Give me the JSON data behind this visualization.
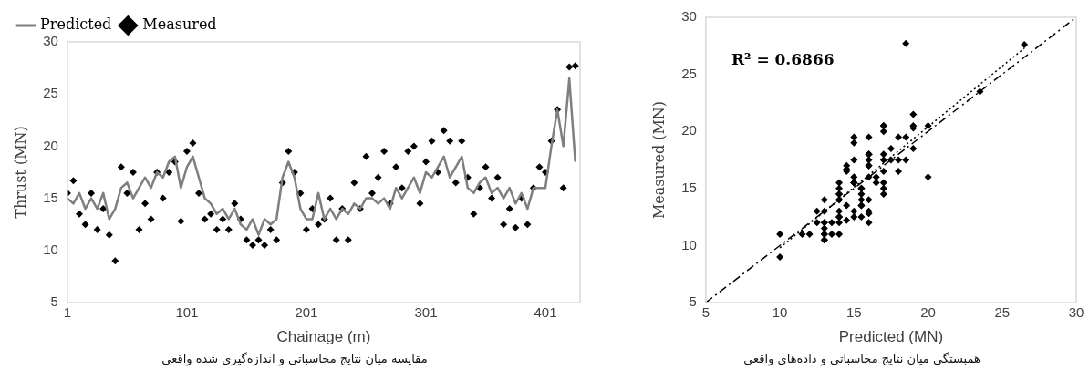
{
  "chart_data": [
    {
      "type": "line",
      "title": "مقایسه میان نتایج محاسباتی و اندازه‌گیری شده واقعی",
      "xlabel": "Chainage (m)",
      "ylabel": "Thrust (MN)",
      "xlim": [
        1,
        430
      ],
      "xticks": [
        1,
        101,
        201,
        301,
        401
      ],
      "ylim": [
        5,
        30
      ],
      "yticks": [
        5,
        10,
        15,
        20,
        25,
        30
      ],
      "grid": false,
      "legend": "top left",
      "x": [
        1,
        6,
        11,
        16,
        21,
        26,
        31,
        36,
        41,
        46,
        51,
        56,
        61,
        66,
        71,
        76,
        81,
        86,
        91,
        96,
        101,
        106,
        111,
        116,
        121,
        126,
        131,
        136,
        141,
        146,
        151,
        156,
        161,
        166,
        171,
        176,
        181,
        186,
        191,
        196,
        201,
        206,
        211,
        216,
        221,
        226,
        231,
        236,
        241,
        246,
        251,
        256,
        261,
        266,
        271,
        276,
        281,
        286,
        291,
        296,
        301,
        306,
        311,
        316,
        321,
        326,
        331,
        336,
        341,
        346,
        351,
        356,
        361,
        366,
        371,
        376,
        381,
        386,
        391,
        396,
        401,
        406,
        411,
        416,
        421,
        426
      ],
      "series": [
        {
          "name": "Predicted",
          "color": "#7f7f7f",
          "marker": "none",
          "values": [
            15,
            14.5,
            15.5,
            14,
            15,
            14,
            15.5,
            13,
            14,
            16,
            16.5,
            15,
            16,
            17,
            16,
            17.5,
            17,
            18.5,
            19,
            16,
            18,
            19,
            17,
            15,
            14.5,
            13.5,
            14,
            13,
            14,
            12.5,
            12,
            13,
            11.5,
            13,
            12.5,
            13,
            17,
            18.5,
            17,
            14,
            13,
            13,
            15.5,
            13,
            14,
            13,
            14,
            13.5,
            14.5,
            14,
            15,
            15,
            14.5,
            15,
            14,
            16,
            15,
            16,
            17,
            15.5,
            17.5,
            17,
            18,
            19,
            17,
            18,
            19,
            16,
            15.5,
            16.5,
            17,
            15.5,
            16,
            15,
            16,
            14.5,
            15.5,
            14,
            16,
            16,
            16,
            20,
            23.5,
            20,
            26.5,
            18.5
          ]
        },
        {
          "name": "Measured",
          "type": "scatter",
          "color": "#000000",
          "marker": "diamond",
          "values": [
            15.5,
            16.7,
            13.5,
            12.5,
            15.5,
            12,
            14,
            11.5,
            9,
            18,
            15.5,
            17.5,
            12,
            14.5,
            13,
            17.5,
            15,
            17.5,
            18.5,
            12.8,
            19.5,
            20.3,
            15.5,
            13,
            13.5,
            12,
            13,
            12,
            14.5,
            13,
            11,
            10.5,
            11,
            10.5,
            12,
            11,
            16.5,
            19.5,
            17.5,
            15.5,
            12,
            14,
            12.5,
            13,
            15,
            11,
            14,
            11,
            16.5,
            14,
            19,
            15.5,
            17,
            19.5,
            14.5,
            18,
            16,
            19.5,
            20,
            14.5,
            18.5,
            20.5,
            17.5,
            21.5,
            20.5,
            16.5,
            20.5,
            17,
            13.5,
            16,
            18,
            15,
            17,
            12.5,
            14,
            12.2,
            15,
            12.5,
            16,
            18,
            17.5,
            20.5,
            23.5,
            16,
            27.6,
            27.7
          ]
        }
      ]
    },
    {
      "type": "scatter",
      "title": "همبستگی میان نتایج محاسباتی و داده‌های واقعی",
      "xlabel": "Predicted (MN)",
      "ylabel": "Measured (MN)",
      "xlim": [
        5,
        30
      ],
      "xticks": [
        5,
        10,
        15,
        20,
        25,
        30
      ],
      "ylim": [
        5,
        30
      ],
      "yticks": [
        5,
        10,
        15,
        20,
        25,
        30
      ],
      "grid": false,
      "legend": false,
      "annotations": [
        "R² = 0.6866"
      ],
      "series": [
        {
          "color": "#000000",
          "marker": "diamond",
          "x": [
            15,
            14.5,
            15.5,
            14,
            15,
            14,
            15.5,
            13,
            14,
            16,
            16.5,
            15,
            16,
            17,
            16,
            17.5,
            17,
            18.5,
            19,
            16,
            18,
            19,
            17,
            15,
            14.5,
            13.5,
            14,
            13,
            14,
            12.5,
            12,
            13,
            11.5,
            13,
            12.5,
            13,
            17,
            18.5,
            17,
            14,
            13,
            13,
            15.5,
            13,
            14,
            13,
            14,
            13.5,
            14.5,
            14,
            15,
            15,
            14.5,
            15,
            14,
            16,
            15,
            16,
            17,
            15.5,
            17.5,
            17,
            18,
            19,
            17,
            18,
            19,
            16,
            15.5,
            16.5,
            17,
            15.5,
            16,
            15,
            16,
            14.5,
            15.5,
            14,
            16,
            16,
            16,
            20,
            23.5,
            20,
            26.5,
            18.5,
            10,
            10
          ],
          "values": [
            15.5,
            16.7,
            13.5,
            12.5,
            15.5,
            12,
            14,
            11.5,
            11,
            18,
            15.5,
            17.5,
            12,
            14.5,
            13,
            17.5,
            15,
            17.5,
            18.5,
            12.8,
            19.5,
            20.3,
            15.5,
            13,
            13.5,
            12,
            13,
            12,
            14.5,
            13,
            11,
            10.5,
            11,
            10.5,
            12,
            11,
            16.5,
            19.5,
            17.5,
            15.5,
            12,
            14,
            12.5,
            13,
            15,
            11,
            14,
            11,
            16.5,
            14,
            19,
            15.5,
            17,
            19.5,
            14.5,
            18,
            16,
            19.5,
            20,
            14.5,
            18.5,
            20.5,
            17.5,
            21.5,
            20.5,
            16.5,
            20.5,
            17,
            13.5,
            16,
            18,
            15,
            17,
            12.5,
            14,
            12.2,
            15,
            12.5,
            16,
            18,
            17.5,
            20.5,
            23.5,
            16,
            27.6,
            27.7,
            9,
            11
          ]
        },
        {
          "type": "line",
          "color": "#000000",
          "marker": "none",
          "line_style": "dotted",
          "x": [
            10,
            26.5
          ],
          "values": [
            9.8,
            27.3
          ]
        },
        {
          "type": "line",
          "color": "#000000",
          "marker": "none",
          "line_style": "dashed",
          "x": [
            5,
            30
          ],
          "values": [
            5,
            30
          ]
        }
      ]
    }
  ]
}
